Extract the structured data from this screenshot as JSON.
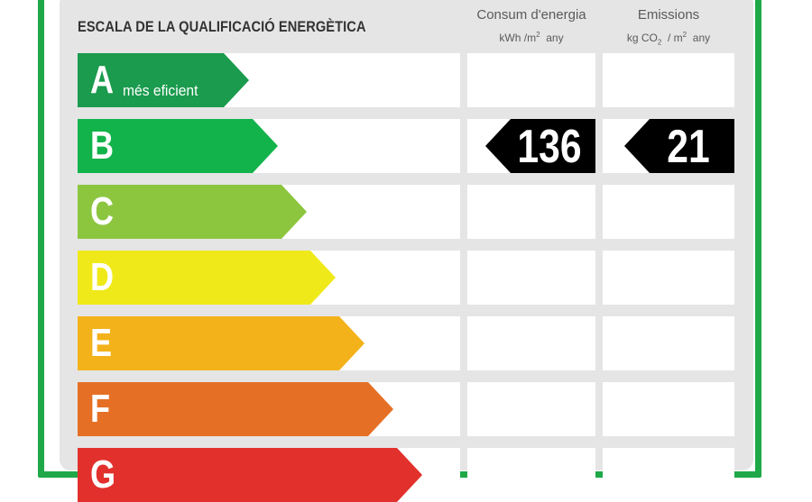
{
  "header": {
    "title": "ESCALA DE LA QUALIFICACIÓ ENERGÈTICA",
    "col_consum": {
      "label": "Consum d'energia",
      "units_pre": "kWh /m",
      "units_sup": "2",
      "units_post": "any"
    },
    "col_emissions": {
      "label": "Emissions",
      "units_pre": "kg CO",
      "units_sub": "2",
      "units_mid": "/ m",
      "units_sup": "2",
      "units_post": "any"
    }
  },
  "scale": [
    {
      "letter": "A",
      "sub": "més eficient",
      "color": "#1a9b4d"
    },
    {
      "letter": "B",
      "sub": "",
      "color": "#13b34b"
    },
    {
      "letter": "C",
      "sub": "",
      "color": "#8cc63f"
    },
    {
      "letter": "D",
      "sub": "",
      "color": "#f0e91a"
    },
    {
      "letter": "E",
      "sub": "",
      "color": "#f3b21a"
    },
    {
      "letter": "F",
      "sub": "",
      "color": "#e57025"
    },
    {
      "letter": "G",
      "sub": "",
      "color": "#e2312c"
    }
  ],
  "rating": {
    "class": "B",
    "consum_value": "136",
    "emissions_value": "21",
    "marker_color": "#000000"
  }
}
